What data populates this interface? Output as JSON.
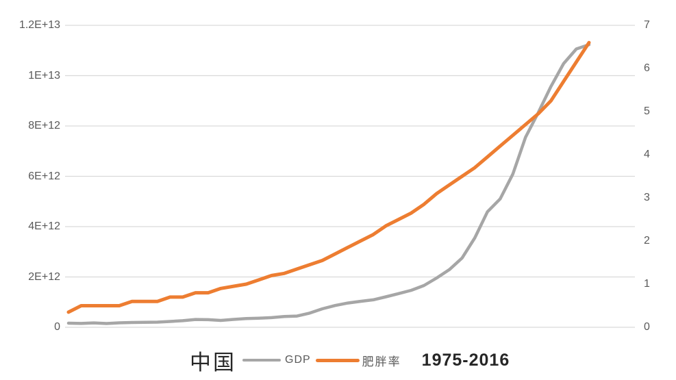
{
  "colors": {
    "grid": "#D9D9D9",
    "axis_label": "#595959",
    "title_text": "#262626",
    "gdp_line": "#A6A6A6",
    "obesity_line": "#ED7D31"
  },
  "caption": {
    "country": "中国",
    "legend_gdp": "GDP",
    "legend_obesity": "肥胖率",
    "years": "1975-2016"
  },
  "chart_data": {
    "type": "line",
    "title": "中国 1975-2016",
    "xlabel": "",
    "ylabel_left": "",
    "ylabel_right": "",
    "grid": true,
    "legend_position": "bottom",
    "x_tick_labels_visible": false,
    "x": [
      1975,
      1976,
      1977,
      1978,
      1979,
      1980,
      1981,
      1982,
      1983,
      1984,
      1985,
      1986,
      1987,
      1988,
      1989,
      1990,
      1991,
      1992,
      1993,
      1994,
      1995,
      1996,
      1997,
      1998,
      1999,
      2000,
      2001,
      2002,
      2003,
      2004,
      2005,
      2006,
      2007,
      2008,
      2009,
      2010,
      2011,
      2012,
      2013,
      2014,
      2015,
      2016
    ],
    "y_left": {
      "min": 0,
      "max": 12000000000000.0,
      "ticks": [
        "0",
        "2E+12",
        "4E+12",
        "6E+12",
        "8E+12",
        "1E+13",
        "1.2E+13"
      ]
    },
    "y_right": {
      "min": 0,
      "max": 7,
      "ticks": [
        "0",
        "1",
        "2",
        "3",
        "4",
        "5",
        "6",
        "7"
      ]
    },
    "series": [
      {
        "name": "GDP",
        "key": "gdp",
        "axis": "left",
        "color": "#A6A6A6",
        "line_width": 4.5,
        "values": [
          163000000000.0,
          153000000000.0,
          175000000000.0,
          150000000000.0,
          178000000000.0,
          191000000000.0,
          196000000000.0,
          205000000000.0,
          231000000000.0,
          260000000000.0,
          310000000000.0,
          301000000000.0,
          273000000000.0,
          312000000000.0,
          348000000000.0,
          361000000000.0,
          383000000000.0,
          427000000000.0,
          445000000000.0,
          564000000000.0,
          734000000000.0,
          864000000000.0,
          962000000000.0,
          1030000000000.0,
          1090000000000.0,
          1210000000000.0,
          1340000000000.0,
          1470000000000.0,
          1660000000000.0,
          1960000000000.0,
          2290000000000.0,
          2750000000000.0,
          3550000000000.0,
          4590000000000.0,
          5100000000000.0,
          6090000000000.0,
          7550000000000.0,
          8530000000000.0,
          9570000000000.0,
          10480000000000.0,
          11060000000000.0,
          11230000000000.0
        ]
      },
      {
        "name": "肥胖率",
        "key": "obesity",
        "axis": "right",
        "color": "#ED7D31",
        "line_width": 5,
        "values": [
          0.35,
          0.5,
          0.5,
          0.5,
          0.5,
          0.6,
          0.6,
          0.6,
          0.7,
          0.7,
          0.8,
          0.8,
          0.9,
          0.95,
          1.0,
          1.1,
          1.2,
          1.25,
          1.35,
          1.45,
          1.55,
          1.7,
          1.85,
          2.0,
          2.15,
          2.35,
          2.5,
          2.65,
          2.85,
          3.1,
          3.3,
          3.5,
          3.7,
          3.95,
          4.2,
          4.45,
          4.7,
          4.95,
          5.25,
          5.7,
          6.15,
          6.6
        ]
      }
    ]
  }
}
